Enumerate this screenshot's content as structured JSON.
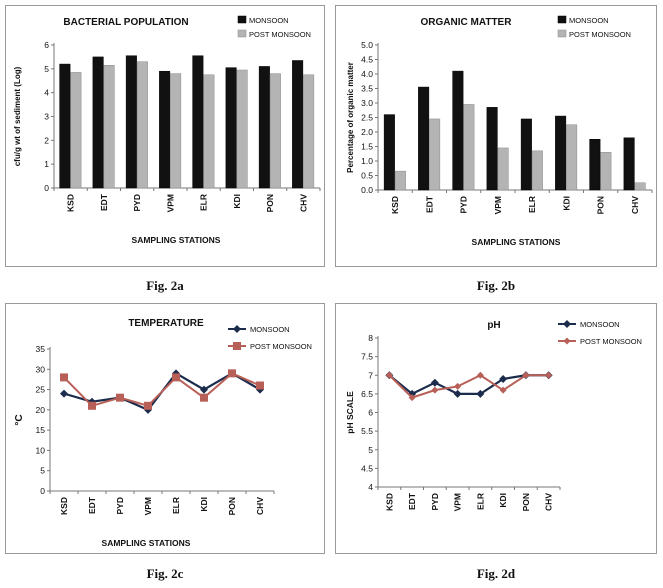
{
  "figures": [
    {
      "caption": "Fig. 2a"
    },
    {
      "caption": "Fig. 2b"
    },
    {
      "caption": "Fig. 2c"
    },
    {
      "caption": "Fig. 2d"
    }
  ],
  "colors": {
    "monsoon_bar": "#111111",
    "post_monsoon_bar": "#b4b4b4",
    "monsoon_line": "#1c2c4c",
    "post_monsoon_line": "#b86058"
  },
  "chart_data": [
    {
      "type": "bar",
      "title": "BACTERIAL POPULATION",
      "xlabel": "SAMPLING STATIONS",
      "ylabel": "cfu/g  wt of sediment (Log)",
      "categories": [
        "KSD",
        "EDT",
        "PYD",
        "VPM",
        "ELR",
        "KDI",
        "PON",
        "CHV"
      ],
      "ylim": [
        0,
        6
      ],
      "yticks": [
        "0",
        "1",
        "2",
        "3",
        "4",
        "5",
        "6"
      ],
      "legend_position": "top-right",
      "series": [
        {
          "name": "MONSOON",
          "values": [
            5.2,
            5.5,
            5.55,
            4.9,
            5.55,
            5.05,
            5.1,
            5.35
          ]
        },
        {
          "name": "POST MONSOON",
          "values": [
            4.85,
            5.15,
            5.3,
            4.8,
            4.75,
            4.95,
            4.8,
            4.75
          ]
        }
      ]
    },
    {
      "type": "bar",
      "title": "ORGANIC MATTER",
      "xlabel": "SAMPLING STATIONS",
      "ylabel": "Percentage of organic matter",
      "categories": [
        "KSD",
        "EDT",
        "PYD",
        "VPM",
        "ELR",
        "KDI",
        "PON",
        "CHV"
      ],
      "ylim": [
        0,
        5
      ],
      "yticks": [
        "0.0",
        "0.5",
        "1.0",
        "1.5",
        "2.0",
        "2.5",
        "3.0",
        "3.5",
        "4.0",
        "4.5",
        "5.0"
      ],
      "legend_position": "top-right",
      "series": [
        {
          "name": "MONSOON",
          "values": [
            2.6,
            3.55,
            4.1,
            2.85,
            2.45,
            2.55,
            1.75,
            1.8
          ]
        },
        {
          "name": "POST MONSOON",
          "values": [
            0.65,
            2.45,
            2.95,
            1.45,
            1.35,
            2.25,
            1.3,
            0.25
          ]
        }
      ]
    },
    {
      "type": "line",
      "title": "TEMPERATURE",
      "xlabel": "SAMPLING STATIONS",
      "ylabel": "°C",
      "categories": [
        "KSD",
        "EDT",
        "PYD",
        "VPM",
        "ELR",
        "KDI",
        "PON",
        "CHV"
      ],
      "ylim": [
        0,
        35
      ],
      "yticks": [
        "0",
        "5",
        "10",
        "15",
        "20",
        "25",
        "30",
        "35"
      ],
      "legend_position": "top-right",
      "series": [
        {
          "name": "MONSOON",
          "values": [
            24,
            22,
            23,
            20,
            29,
            25,
            29,
            25
          ]
        },
        {
          "name": "POST MONSOON",
          "values": [
            28,
            21,
            23,
            21,
            28,
            23,
            29,
            26
          ]
        }
      ]
    },
    {
      "type": "line",
      "title": "pH",
      "xlabel": "",
      "ylabel": "pH SCALE",
      "categories": [
        "KSD",
        "EDT",
        "PYD",
        "VPM",
        "ELR",
        "KDI",
        "PON",
        "CHV"
      ],
      "ylim": [
        4,
        8
      ],
      "yticks": [
        "4",
        "4.5",
        "5",
        "5.5",
        "6",
        "6.5",
        "7",
        "7.5",
        "8"
      ],
      "legend_position": "top-right",
      "series": [
        {
          "name": "MONSOON",
          "values": [
            7.0,
            6.5,
            6.8,
            6.5,
            6.5,
            6.9,
            7.0,
            7.0
          ]
        },
        {
          "name": "POST MONSOON",
          "values": [
            7.0,
            6.4,
            6.6,
            6.7,
            7.0,
            6.6,
            7.0,
            7.0
          ]
        }
      ]
    }
  ]
}
